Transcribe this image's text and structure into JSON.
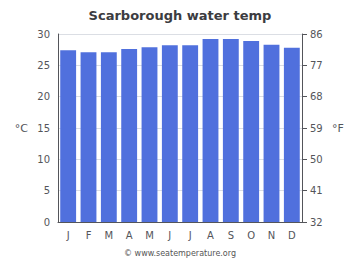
{
  "chart_data": {
    "type": "bar",
    "title": "Scarborough water temp",
    "categories": [
      "J",
      "F",
      "M",
      "A",
      "M",
      "J",
      "J",
      "A",
      "S",
      "O",
      "N",
      "D"
    ],
    "values": [
      27.4,
      27.1,
      27.1,
      27.6,
      27.9,
      28.2,
      28.2,
      29.2,
      29.2,
      28.9,
      28.3,
      27.8
    ],
    "ylim": [
      0,
      30
    ],
    "yticks": [
      0,
      5,
      10,
      15,
      20,
      25,
      30
    ],
    "y2lim": [
      32,
      86
    ],
    "y2ticks": [
      32,
      41,
      50,
      59,
      68,
      77,
      86
    ],
    "ylabel": "°C",
    "y2label": "°F",
    "annotations": [
      "© www.seatemperature.org"
    ],
    "grid": true
  }
}
